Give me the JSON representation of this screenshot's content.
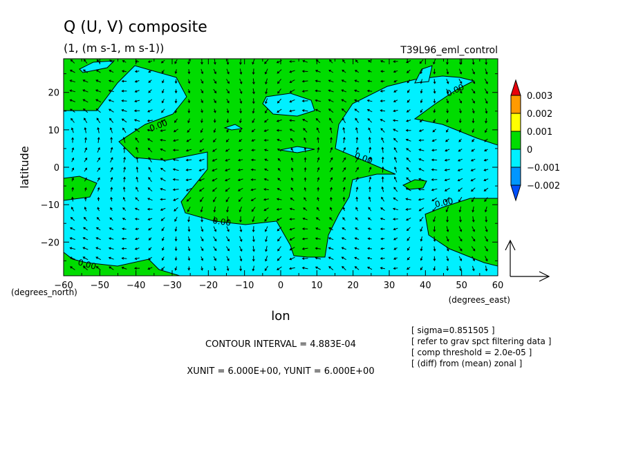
{
  "title": "Q (U, V) composite",
  "subtitle": "(1, (m s-1, m s-1))",
  "run_label": "T39L96_eml_control",
  "chart_data": {
    "type": "contour-vector",
    "xlabel": "lon",
    "ylabel": "latitude",
    "x_unit_label": "(degrees_east)",
    "y_unit_label": "(degrees_north)",
    "xlim": [
      -60,
      60
    ],
    "ylim": [
      -29,
      29
    ],
    "x_ticks": [
      -60,
      -50,
      -40,
      -30,
      -20,
      -10,
      0,
      10,
      20,
      30,
      40,
      50,
      60
    ],
    "y_ticks": [
      -20,
      -10,
      0,
      10,
      20
    ],
    "contour_label": "0.00",
    "colorbar": {
      "labels": [
        "0.003",
        "0.002",
        "0.001",
        "0",
        "-0.001",
        "-0.002"
      ],
      "colors": [
        "#e8000b",
        "#ff9a00",
        "#ffff00",
        "#00dc00",
        "#00f0ff",
        "#0096ff",
        "#0050ff"
      ]
    },
    "fill_colors": {
      "positive": "#00dc00",
      "negative": "#00f0ff"
    },
    "vector_spacing_deg": 5
  },
  "footer": {
    "contour_interval": "CONTOUR INTERVAL = 4.883E-04",
    "units": "XUNIT = 6.000E+00, YUNIT = 6.000E+00",
    "notes": [
      "[ sigma=0.851505 ]",
      "[ refer to grav spct filtering data ]",
      "[ comp threshold = 2.0e-05 ]",
      "[ (diff) from (mean) zonal ]"
    ]
  }
}
